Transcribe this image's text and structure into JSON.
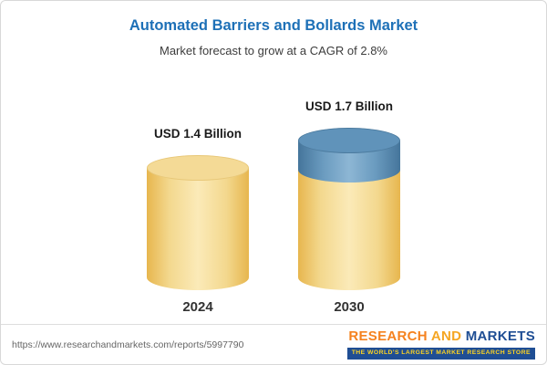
{
  "header": {
    "title": "Automated Barriers and Bollards Market",
    "subtitle": "Market forecast to grow at a CAGR of 2.8%"
  },
  "chart_data": {
    "type": "bar",
    "title": "Automated Barriers and Bollards Market",
    "subtitle": "Market forecast to grow at a CAGR of 2.8%",
    "unit": "USD Billion",
    "cagr_percent": 2.8,
    "categories": [
      "2024",
      "2030"
    ],
    "values": [
      1.4,
      1.7
    ],
    "value_labels": [
      "USD 1.4 Billion",
      "USD 1.7 Billion"
    ],
    "growth_segment": {
      "year": "2030",
      "value": 0.3,
      "color": "#6093BA"
    },
    "bar_style": "3d-cylinder",
    "colors": {
      "base_segment": "#F5D88F",
      "growth_segment": "#6093BA"
    },
    "legend": "none",
    "grid": "off"
  },
  "footer": {
    "url": "https://www.researchandmarkets.com/reports/5997790",
    "logo": {
      "word1": "RESEARCH",
      "word2": "AND",
      "word3": "MARKETS",
      "tagline": "THE WORLD'S LARGEST MARKET RESEARCH STORE"
    }
  },
  "colors": {
    "title_blue": "#1D70B7",
    "cylinder_yellow": "#F5D88F",
    "cylinder_blue": "#6093BA",
    "logo_orange": "#F5821F",
    "logo_navy": "#1F4E94",
    "tagline_gold": "#FFD520"
  }
}
